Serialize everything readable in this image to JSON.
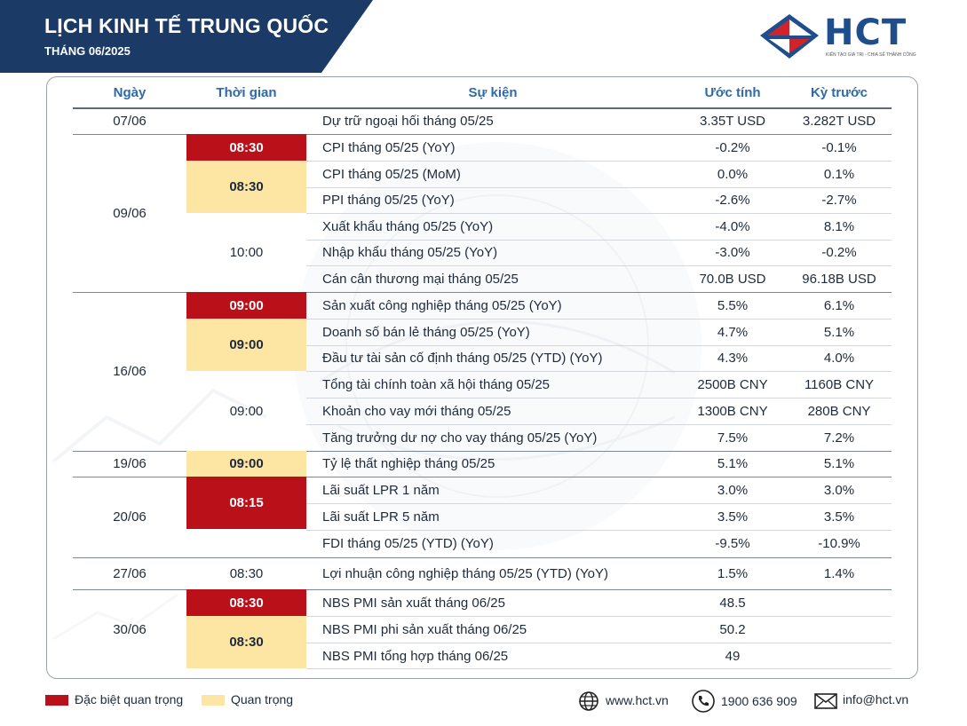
{
  "header": {
    "title": "LỊCH KINH TẾ TRUNG QUỐC",
    "subtitle": "THÁNG 06/2025"
  },
  "logo": {
    "text": "HCT",
    "tagline": "KIẾN TẠO GIÁ TRỊ - CHIA SẺ THÀNH CÔNG",
    "colors": {
      "navy": "#1f4e8c",
      "red": "#d2222a"
    }
  },
  "table": {
    "columns": {
      "date": "Ngày",
      "time": "Thời gian",
      "event": "Sự kiện",
      "forecast": "Ước tính",
      "previous": "Kỳ trước"
    },
    "rows": [
      {
        "event": "Dự trữ ngoại hối tháng 05/25",
        "forecast": "3.35T USD",
        "previous": "3.282T USD"
      },
      {
        "event": "CPI tháng 05/25 (YoY)",
        "forecast": "-0.2%",
        "previous": "-0.1%"
      },
      {
        "event": "CPI tháng 05/25 (MoM)",
        "forecast": "0.0%",
        "previous": "0.1%"
      },
      {
        "event": "PPI tháng 05/25 (YoY)",
        "forecast": "-2.6%",
        "previous": "-2.7%"
      },
      {
        "event": "Xuất khẩu tháng 05/25 (YoY)",
        "forecast": "-4.0%",
        "previous": "8.1%"
      },
      {
        "event": "Nhập khẩu tháng 05/25 (YoY)",
        "forecast": "-3.0%",
        "previous": "-0.2%"
      },
      {
        "event": "Cán cân thương mại tháng 05/25",
        "forecast": "70.0B USD",
        "previous": "96.18B USD"
      },
      {
        "event": "Sản xuất công nghiệp tháng 05/25 (YoY)",
        "forecast": "5.5%",
        "previous": "6.1%"
      },
      {
        "event": "Doanh số bán lẻ tháng 05/25 (YoY)",
        "forecast": "4.7%",
        "previous": "5.1%"
      },
      {
        "event": "Đầu tư tài sản cố định tháng 05/25 (YTD) (YoY)",
        "forecast": "4.3%",
        "previous": "4.0%"
      },
      {
        "event": "Tổng tài chính toàn xã hội tháng 05/25",
        "forecast": "2500B CNY",
        "previous": "1160B CNY"
      },
      {
        "event": "Khoản cho vay mới tháng 05/25",
        "forecast": "1300B CNY",
        "previous": "280B CNY"
      },
      {
        "event": "Tăng trưởng dư nợ cho vay tháng 05/25 (YoY)",
        "forecast": "7.5%",
        "previous": "7.2%"
      },
      {
        "event": "Tỷ lệ thất nghiệp tháng 05/25",
        "forecast": "5.1%",
        "previous": "5.1%"
      },
      {
        "event": "Lãi suất LPR 1 năm",
        "forecast": "3.0%",
        "previous": "3.0%"
      },
      {
        "event": "Lãi suất LPR 5 năm",
        "forecast": "3.5%",
        "previous": "3.5%"
      },
      {
        "event": "FDI tháng 05/25 (YTD) (YoY)",
        "forecast": "-9.5%",
        "previous": "-10.9%"
      },
      {
        "event": "Lợi nhuận công nghiệp tháng 05/25 (YTD) (YoY)",
        "forecast": "1.5%",
        "previous": "1.4%"
      },
      {
        "event": "NBS PMI sản xuất tháng 06/25",
        "forecast": "48.5",
        "previous": ""
      },
      {
        "event": "NBS PMI phi sản xuất tháng 06/25",
        "forecast": "50.2",
        "previous": ""
      },
      {
        "event": "NBS PMI tổng hợp tháng 06/25",
        "forecast": "49",
        "previous": ""
      }
    ],
    "dates": [
      "07/06",
      "09/06",
      "16/06",
      "19/06",
      "20/06",
      "27/06",
      "30/06"
    ],
    "times": [
      {
        "label": "08:30",
        "importance": "very-important"
      },
      {
        "label": "08:30",
        "importance": "important"
      },
      {
        "label": "10:00",
        "importance": "normal"
      },
      {
        "label": "09:00",
        "importance": "very-important"
      },
      {
        "label": "09:00",
        "importance": "important"
      },
      {
        "label": "09:00",
        "importance": "normal"
      },
      {
        "label": "09:00",
        "importance": "important"
      },
      {
        "label": "08:15",
        "importance": "very-important"
      },
      {
        "label": "08:30",
        "importance": "normal"
      },
      {
        "label": "08:30",
        "importance": "very-important"
      },
      {
        "label": "08:30",
        "importance": "important"
      }
    ]
  },
  "legend": {
    "very_important": "Đặc biệt quan trọng",
    "important": "Quan trọng",
    "colors": {
      "very_important": "#b9101a",
      "important": "#fde6a4"
    }
  },
  "contact": {
    "website": "www.hct.vn",
    "phone": "1900 636 909",
    "email": "info@hct.vn"
  }
}
